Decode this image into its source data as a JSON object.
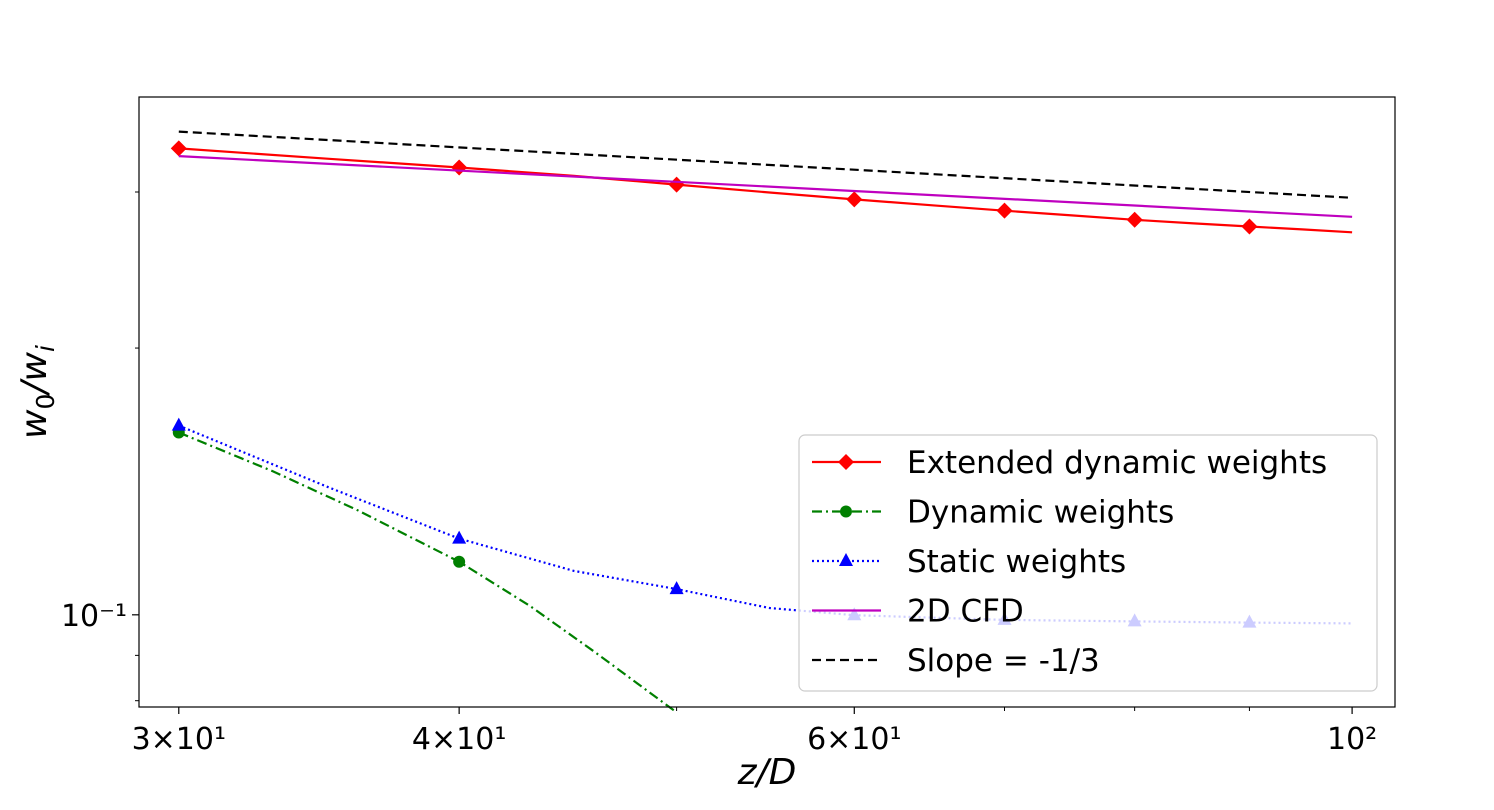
{
  "chart_data": {
    "type": "line",
    "xscale": "log",
    "yscale": "log",
    "xlabel": "z/D",
    "ylabel": "w0/wi",
    "xlim": [
      28.8,
      104.5
    ],
    "ylim": [
      0.0787,
      0.384
    ],
    "x_ticks": [
      {
        "value": 30,
        "label": "3×10¹"
      },
      {
        "value": 40,
        "label": "4×10¹"
      },
      {
        "value": 60,
        "label": "6×10¹"
      },
      {
        "value": 100,
        "label": "10²"
      }
    ],
    "y_ticks": [
      {
        "value": 0.1,
        "label": "10⁻¹"
      }
    ],
    "legend_position": "lower-right",
    "series": [
      {
        "name": "Extended dynamic weights",
        "color": "#ff0000",
        "linestyle": "solid",
        "marker": "diamond",
        "x": [
          30,
          35,
          40,
          45,
          50,
          55,
          60,
          65,
          70,
          75,
          80,
          85,
          90,
          95,
          100
        ],
        "y": [
          0.336,
          0.327,
          0.3197,
          0.3128,
          0.3058,
          0.2996,
          0.2943,
          0.2898,
          0.2858,
          0.2823,
          0.2791,
          0.2765,
          0.2743,
          0.2722,
          0.2702
        ],
        "marker_x": [
          30,
          40,
          50,
          60,
          70,
          80,
          90
        ],
        "marker_y": [
          0.336,
          0.3197,
          0.3058,
          0.2943,
          0.2858,
          0.2791,
          0.2743
        ]
      },
      {
        "name": "Dynamic weights",
        "color": "#008000",
        "linestyle": "dashdot",
        "marker": "circle",
        "x": [
          30,
          33,
          36,
          40,
          43,
          46,
          50
        ],
        "y": [
          0.1606,
          0.1454,
          0.1314,
          0.1148,
          0.1024,
          0.0907,
          0.0776
        ],
        "marker_x": [
          30,
          40
        ],
        "marker_y": [
          0.1606,
          0.1148
        ]
      },
      {
        "name": "Static weights",
        "color": "#0000ff",
        "linestyle": "dotted",
        "marker": "triangle",
        "x": [
          30,
          35,
          40,
          45,
          50,
          55,
          60,
          70,
          80,
          90,
          100
        ],
        "y": [
          0.1635,
          0.1392,
          0.1219,
          0.1121,
          0.1069,
          0.1018,
          0.0999,
          0.0987,
          0.0983,
          0.098,
          0.0978
        ],
        "marker_x": [
          30,
          40,
          50,
          60,
          70,
          80,
          90
        ],
        "marker_y": [
          0.1635,
          0.1219,
          0.1069,
          0.0999,
          0.0987,
          0.0983,
          0.098
        ]
      },
      {
        "name": "2D CFD",
        "color": "#bf00bf",
        "linestyle": "solid",
        "marker": "none",
        "x": [
          30,
          100
        ],
        "y": [
          0.3293,
          0.2813
        ]
      },
      {
        "name": "Slope = -1/3",
        "color": "#000000",
        "linestyle": "dashed",
        "marker": "none",
        "x": [
          30,
          100
        ],
        "y": [
          0.351,
          0.2955
        ]
      }
    ]
  }
}
